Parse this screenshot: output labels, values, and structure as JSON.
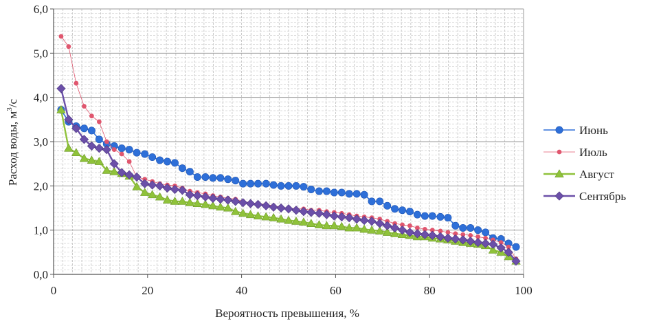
{
  "chart_data": {
    "type": "line",
    "xlabel": "Вероятность превышения, %",
    "ylabel": "Расход воды, м",
    "ylabel_sup": "3",
    "ylabel_suffix": "/с",
    "xlim": [
      0,
      100
    ],
    "ylim": [
      0,
      6
    ],
    "xticks": [
      0,
      20,
      40,
      60,
      80,
      100
    ],
    "xtick_labels": [
      "0",
      "20",
      "40",
      "60",
      "80",
      "100"
    ],
    "yticks": [
      0,
      1,
      2,
      3,
      4,
      5,
      6
    ],
    "ytick_labels": [
      "0,0",
      "1,0",
      "2,0",
      "3,0",
      "4,0",
      "5,0",
      "6,0"
    ],
    "grid": true,
    "legend_position": "right",
    "series": [
      {
        "name": "Июнь",
        "color": "#2e6fd8",
        "marker": "circle",
        "x": [
          1.6,
          3.2,
          4.8,
          6.5,
          8.1,
          9.7,
          11.3,
          12.9,
          14.5,
          16.1,
          17.7,
          19.4,
          21.0,
          22.6,
          24.2,
          25.8,
          27.4,
          29.0,
          30.6,
          32.3,
          33.9,
          35.5,
          37.1,
          38.7,
          40.3,
          41.9,
          43.5,
          45.2,
          46.8,
          48.4,
          50.0,
          51.6,
          53.2,
          54.8,
          56.5,
          58.1,
          59.7,
          61.3,
          62.9,
          64.5,
          66.1,
          67.7,
          69.4,
          71.0,
          72.6,
          74.2,
          75.8,
          77.4,
          79.0,
          80.6,
          82.3,
          83.9,
          85.5,
          87.1,
          88.7,
          90.3,
          91.9,
          93.5,
          95.2,
          96.8,
          98.4
        ],
        "y": [
          3.72,
          3.45,
          3.35,
          3.3,
          3.25,
          3.05,
          2.95,
          2.9,
          2.85,
          2.82,
          2.75,
          2.72,
          2.65,
          2.58,
          2.55,
          2.52,
          2.4,
          2.32,
          2.2,
          2.2,
          2.18,
          2.18,
          2.15,
          2.12,
          2.05,
          2.05,
          2.05,
          2.05,
          2.02,
          2.0,
          2.0,
          2.0,
          1.98,
          1.92,
          1.88,
          1.88,
          1.85,
          1.85,
          1.82,
          1.82,
          1.8,
          1.65,
          1.65,
          1.55,
          1.48,
          1.45,
          1.42,
          1.35,
          1.32,
          1.32,
          1.3,
          1.28,
          1.1,
          1.05,
          1.05,
          1.0,
          0.95,
          0.82,
          0.8,
          0.7,
          0.62
        ]
      },
      {
        "name": "Июль",
        "color": "#e0566e",
        "marker": "circle-small",
        "x": [
          1.6,
          3.2,
          4.8,
          6.5,
          8.1,
          9.7,
          11.3,
          12.9,
          14.5,
          16.1,
          17.7,
          19.4,
          21.0,
          22.6,
          24.2,
          25.8,
          27.4,
          29.0,
          30.6,
          32.3,
          33.9,
          35.5,
          37.1,
          38.7,
          40.3,
          41.9,
          43.5,
          45.2,
          46.8,
          48.4,
          50.0,
          51.6,
          53.2,
          54.8,
          56.5,
          58.1,
          59.7,
          61.3,
          62.9,
          64.5,
          66.1,
          67.7,
          69.4,
          71.0,
          72.6,
          74.2,
          75.8,
          77.4,
          79.0,
          80.6,
          82.3,
          83.9,
          85.5,
          87.1,
          88.7,
          90.3,
          91.9,
          93.5,
          95.2,
          96.8,
          98.4
        ],
        "y": [
          5.38,
          5.15,
          4.32,
          3.8,
          3.58,
          3.45,
          3.0,
          2.82,
          2.72,
          2.55,
          2.2,
          2.15,
          2.1,
          2.05,
          2.02,
          2.0,
          1.95,
          1.88,
          1.85,
          1.82,
          1.78,
          1.75,
          1.72,
          1.7,
          1.65,
          1.62,
          1.6,
          1.58,
          1.55,
          1.52,
          1.5,
          1.48,
          1.48,
          1.45,
          1.45,
          1.42,
          1.4,
          1.38,
          1.35,
          1.32,
          1.3,
          1.28,
          1.25,
          1.2,
          1.15,
          1.12,
          1.1,
          1.05,
          1.02,
          1.0,
          0.98,
          0.95,
          0.92,
          0.9,
          0.88,
          0.85,
          0.82,
          0.78,
          0.72,
          0.62,
          0.35
        ]
      },
      {
        "name": "Август",
        "color": "#8fc23a",
        "marker": "triangle",
        "x": [
          1.6,
          3.2,
          4.8,
          6.5,
          8.1,
          9.7,
          11.3,
          12.9,
          14.5,
          16.1,
          17.7,
          19.4,
          21.0,
          22.6,
          24.2,
          25.8,
          27.4,
          29.0,
          30.6,
          32.3,
          33.9,
          35.5,
          37.1,
          38.7,
          40.3,
          41.9,
          43.5,
          45.2,
          46.8,
          48.4,
          50.0,
          51.6,
          53.2,
          54.8,
          56.5,
          58.1,
          59.7,
          61.3,
          62.9,
          64.5,
          66.1,
          67.7,
          69.4,
          71.0,
          72.6,
          74.2,
          75.8,
          77.4,
          79.0,
          80.6,
          82.3,
          83.9,
          85.5,
          87.1,
          88.7,
          90.3,
          91.9,
          93.5,
          95.2,
          96.8,
          98.4
        ],
        "y": [
          3.72,
          2.85,
          2.75,
          2.62,
          2.58,
          2.55,
          2.35,
          2.32,
          2.28,
          2.22,
          1.98,
          1.85,
          1.8,
          1.75,
          1.68,
          1.65,
          1.65,
          1.62,
          1.6,
          1.58,
          1.55,
          1.52,
          1.5,
          1.42,
          1.38,
          1.35,
          1.32,
          1.3,
          1.28,
          1.25,
          1.22,
          1.2,
          1.18,
          1.15,
          1.12,
          1.1,
          1.1,
          1.08,
          1.05,
          1.05,
          1.02,
          1.0,
          0.98,
          0.95,
          0.92,
          0.9,
          0.88,
          0.85,
          0.85,
          0.82,
          0.8,
          0.78,
          0.75,
          0.72,
          0.7,
          0.68,
          0.65,
          0.55,
          0.5,
          0.4,
          0.3
        ]
      },
      {
        "name": "Сентябрь",
        "color": "#6b4fa8",
        "marker": "diamond",
        "x": [
          1.6,
          3.2,
          4.8,
          6.5,
          8.1,
          9.7,
          11.3,
          12.9,
          14.5,
          16.1,
          17.7,
          19.4,
          21.0,
          22.6,
          24.2,
          25.8,
          27.4,
          29.0,
          30.6,
          32.3,
          33.9,
          35.5,
          37.1,
          38.7,
          40.3,
          41.9,
          43.5,
          45.2,
          46.8,
          48.4,
          50.0,
          51.6,
          53.2,
          54.8,
          56.5,
          58.1,
          59.7,
          61.3,
          62.9,
          64.5,
          66.1,
          67.7,
          69.4,
          71.0,
          72.6,
          74.2,
          75.8,
          77.4,
          79.0,
          80.6,
          82.3,
          83.9,
          85.5,
          87.1,
          88.7,
          90.3,
          91.9,
          93.5,
          95.2,
          96.8,
          98.4
        ],
        "y": [
          4.2,
          3.5,
          3.3,
          3.05,
          2.9,
          2.85,
          2.82,
          2.5,
          2.3,
          2.25,
          2.2,
          2.05,
          2.02,
          2.0,
          1.95,
          1.92,
          1.9,
          1.8,
          1.78,
          1.75,
          1.72,
          1.7,
          1.68,
          1.65,
          1.62,
          1.6,
          1.58,
          1.55,
          1.52,
          1.5,
          1.48,
          1.45,
          1.42,
          1.4,
          1.38,
          1.35,
          1.32,
          1.3,
          1.28,
          1.25,
          1.22,
          1.2,
          1.15,
          1.1,
          1.05,
          1.0,
          0.95,
          0.92,
          0.9,
          0.88,
          0.85,
          0.82,
          0.8,
          0.78,
          0.75,
          0.72,
          0.7,
          0.68,
          0.6,
          0.5,
          0.3
        ]
      }
    ]
  }
}
